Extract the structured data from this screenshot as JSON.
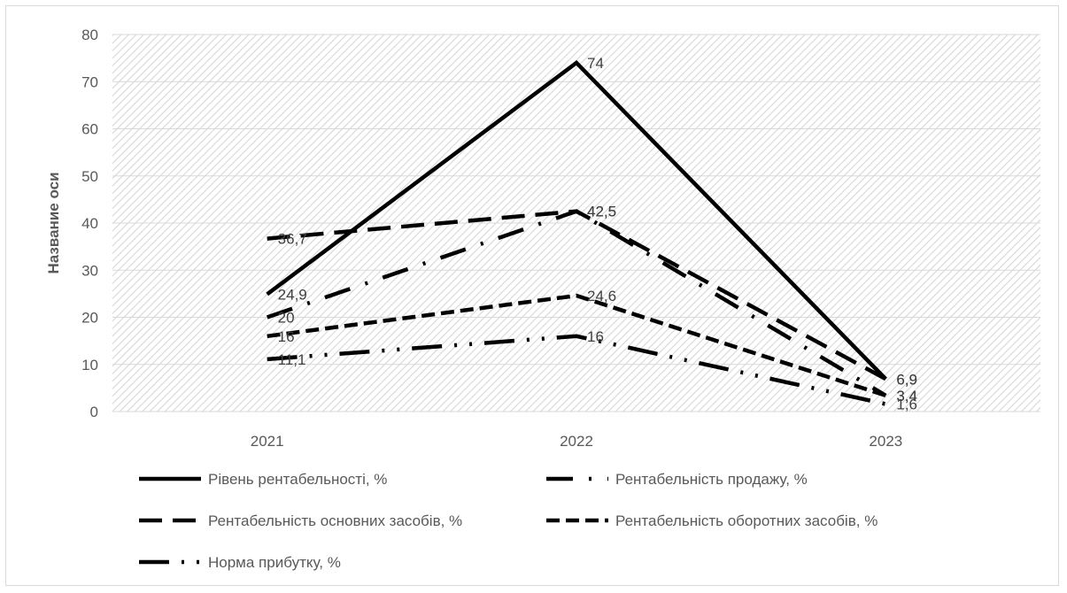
{
  "chart_data": {
    "type": "line",
    "title": "",
    "xlabel": "",
    "ylabel": "Название оси",
    "ylim": [
      0,
      80
    ],
    "yticks": [
      0,
      10,
      20,
      30,
      40,
      50,
      60,
      70,
      80
    ],
    "categories": [
      "2021",
      "2022",
      "2023"
    ],
    "grid": true,
    "plot_background": "diagonal hatch",
    "legend_position": "bottom",
    "series": [
      {
        "name": "Рівень рентабельності, %",
        "values": [
          24.9,
          74,
          6.9
        ],
        "labels": [
          "24,9",
          "74",
          "6,9"
        ],
        "color": "#000000",
        "dash": "solid"
      },
      {
        "name": "Рентабельність продажу, %",
        "values": [
          20,
          42.5,
          3.4
        ],
        "labels": [
          "20",
          "42,5",
          "3,4"
        ],
        "color": "#000000",
        "dash": "long-dash-dot"
      },
      {
        "name": "Рентабельність основних засобів, %",
        "values": [
          36.7,
          42.5,
          6.9
        ],
        "labels": [
          "36,7",
          "42,5",
          "6,9"
        ],
        "color": "#000000",
        "dash": "long-dash"
      },
      {
        "name": "Рентабельність оборотних засобів, %",
        "values": [
          16,
          24.6,
          3.4
        ],
        "labels": [
          "16",
          "24,6",
          "3,4"
        ],
        "color": "#000000",
        "dash": "dash"
      },
      {
        "name": "Норма прибутку, %",
        "values": [
          11.1,
          16,
          1.6
        ],
        "labels": [
          "11,1",
          "16",
          "1,6"
        ],
        "color": "#000000",
        "dash": "long-dash-dot-dot"
      }
    ]
  }
}
